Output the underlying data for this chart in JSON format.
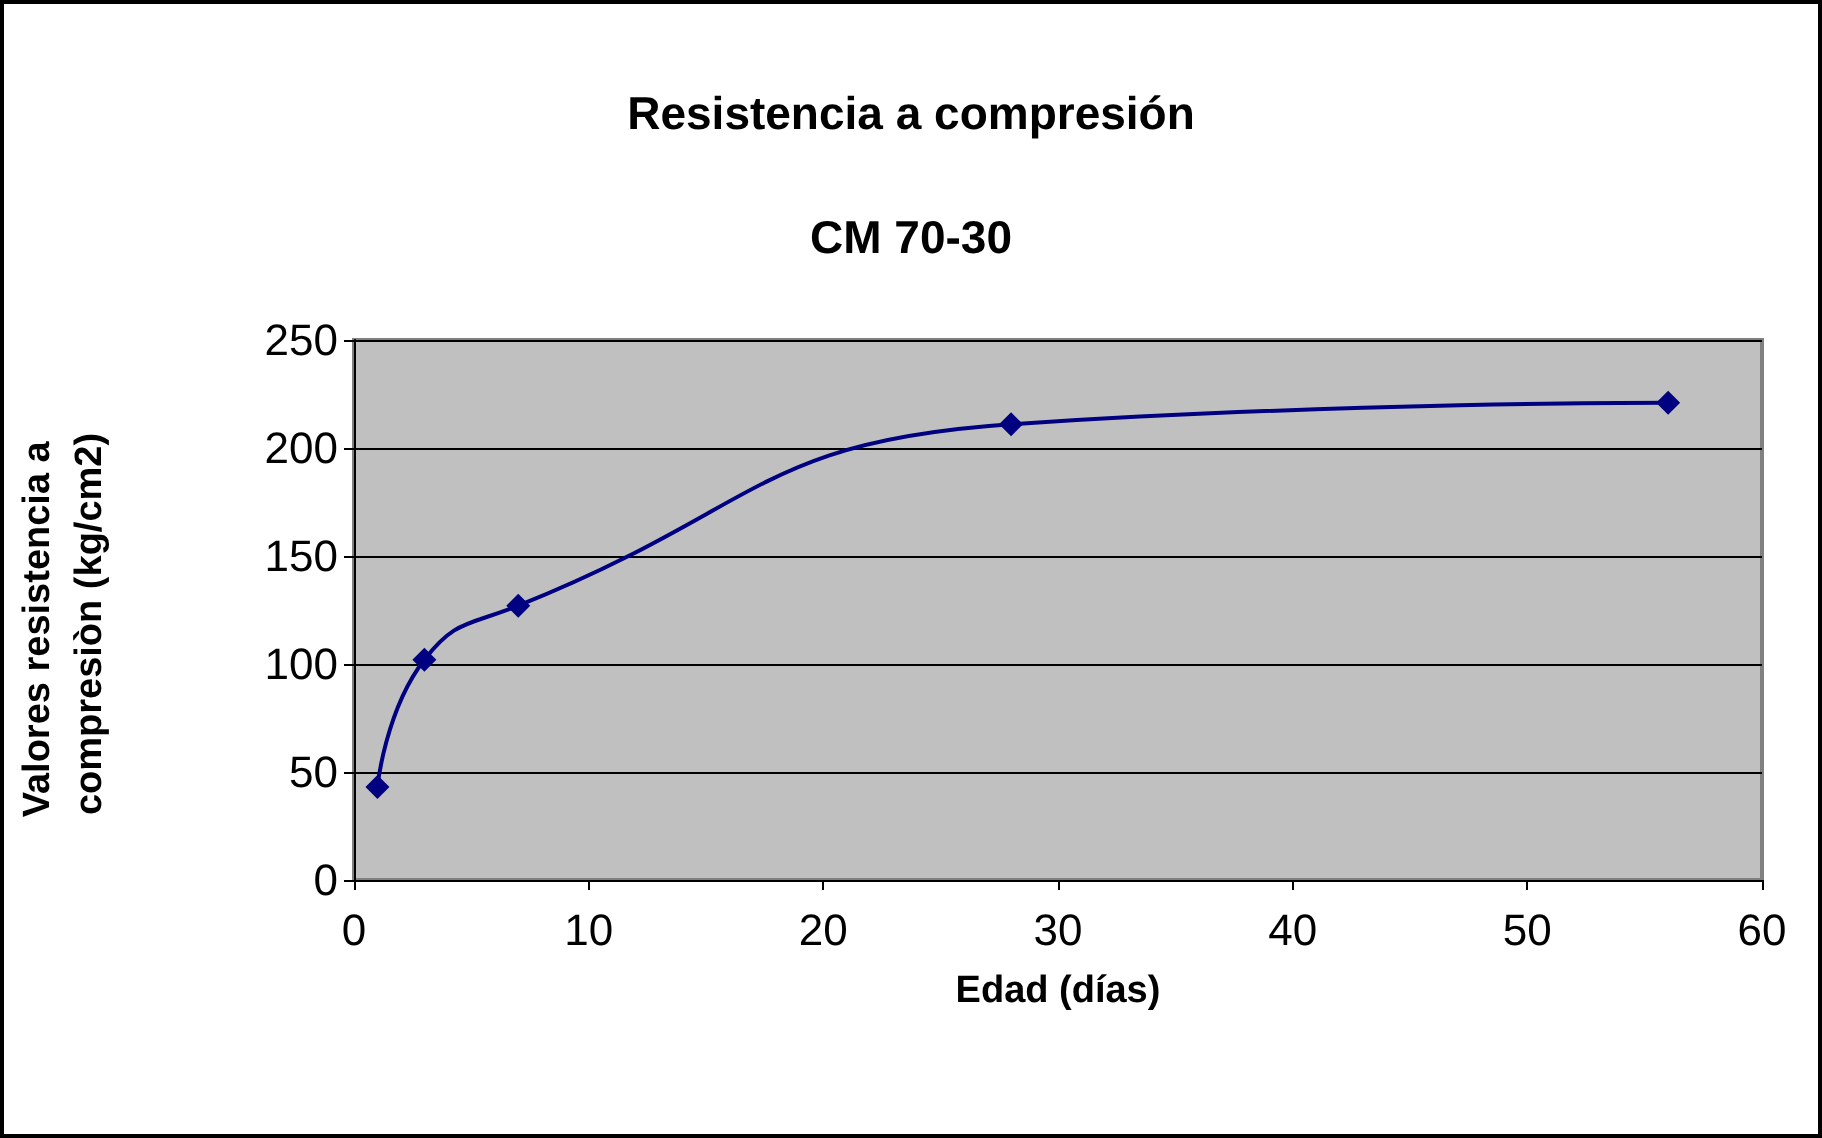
{
  "chart_data": {
    "type": "line",
    "title": "Resistencia a compresión",
    "subtitle": "CM 70-30",
    "xlabel": "Edad (días)",
    "ylabel": "Valores resistencia a compresiòn (kg/cm2)",
    "x": [
      1,
      3,
      7,
      28,
      56
    ],
    "series": [
      {
        "color": "#000080",
        "values": [
          43,
          102,
          127,
          211,
          221
        ]
      }
    ],
    "xlim": [
      0,
      60
    ],
    "xticks": [
      0,
      10,
      20,
      30,
      40,
      50,
      60
    ],
    "ylim": [
      0,
      250
    ],
    "yticks": [
      0,
      50,
      100,
      150,
      200,
      250
    ],
    "grid": "y",
    "marker": "diamond",
    "line_style": "solid"
  }
}
